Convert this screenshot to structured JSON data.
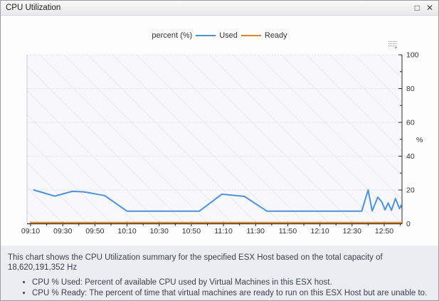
{
  "window": {
    "title": "CPU Utilization"
  },
  "icons": {
    "maximize": "□",
    "close": "✕",
    "chart_menu_caret": "▾"
  },
  "legend": {
    "axis_label": "percent (%)",
    "series": [
      {
        "label": "Used",
        "color": "#4d92da"
      },
      {
        "label": "Ready",
        "color": "#de8426"
      }
    ]
  },
  "chart_data": {
    "type": "line",
    "title": "CPU Utilization",
    "xlabel": "",
    "ylabel": "%",
    "ylim": [
      0,
      100
    ],
    "y_major_ticks": [
      0,
      20,
      40,
      60,
      80,
      100
    ],
    "y_minor_ticks": [
      10,
      30,
      50,
      70,
      90
    ],
    "grid": "horizontal-dashed",
    "legend_position": "top",
    "plot_bg": "#f8f8fb",
    "grid_color": "#dde3ef",
    "axis_color": "#2b2b2b",
    "x_axis": {
      "unit": "minutes-from-start",
      "major_tick_labels": [
        "09:10",
        "09:30",
        "09:50",
        "10:10",
        "10:30",
        "10:50",
        "11:10",
        "11:30",
        "11:50",
        "12:10",
        "12:30",
        "12:50"
      ],
      "major_tick_minutes": [
        0,
        20,
        40,
        60,
        80,
        100,
        120,
        140,
        160,
        180,
        200,
        220
      ],
      "minor_tick_step_minutes": 10,
      "minor_tick_max_minutes": 230
    },
    "series": [
      {
        "name": "Ready",
        "color": "#de8426",
        "points": [
          [
            0,
            0.7
          ],
          [
            231.2,
            0.7
          ]
        ]
      },
      {
        "name": "Used",
        "color": "#4d92da",
        "points": [
          [
            2,
            20
          ],
          [
            8,
            18.3
          ],
          [
            15,
            16.4
          ],
          [
            26,
            19.2
          ],
          [
            33,
            18.9
          ],
          [
            46,
            16.7
          ],
          [
            60,
            7.5
          ],
          [
            105,
            7.5
          ],
          [
            119,
            17.5
          ],
          [
            133,
            16.2
          ],
          [
            147,
            7.5
          ],
          [
            206,
            7.5
          ],
          [
            210,
            20
          ],
          [
            212.5,
            7.6
          ],
          [
            216,
            15.8
          ],
          [
            218.5,
            13
          ],
          [
            220.5,
            8.2
          ],
          [
            222.5,
            12.3
          ],
          [
            224.5,
            8
          ],
          [
            227,
            15
          ],
          [
            229.5,
            9
          ],
          [
            231.2,
            12
          ]
        ]
      }
    ]
  },
  "description": {
    "summary": "This chart shows the CPU Utilization summary for the specified ESX Host based on the total capacity of 18,620,191,352 Hz",
    "bullets": [
      "CPU % Used: Percent of available CPU used by Virtual Machines in this ESX host.",
      "CPU % Ready: The percent of time that virtual machines are ready to run on this ESX Host but are unable to."
    ]
  }
}
